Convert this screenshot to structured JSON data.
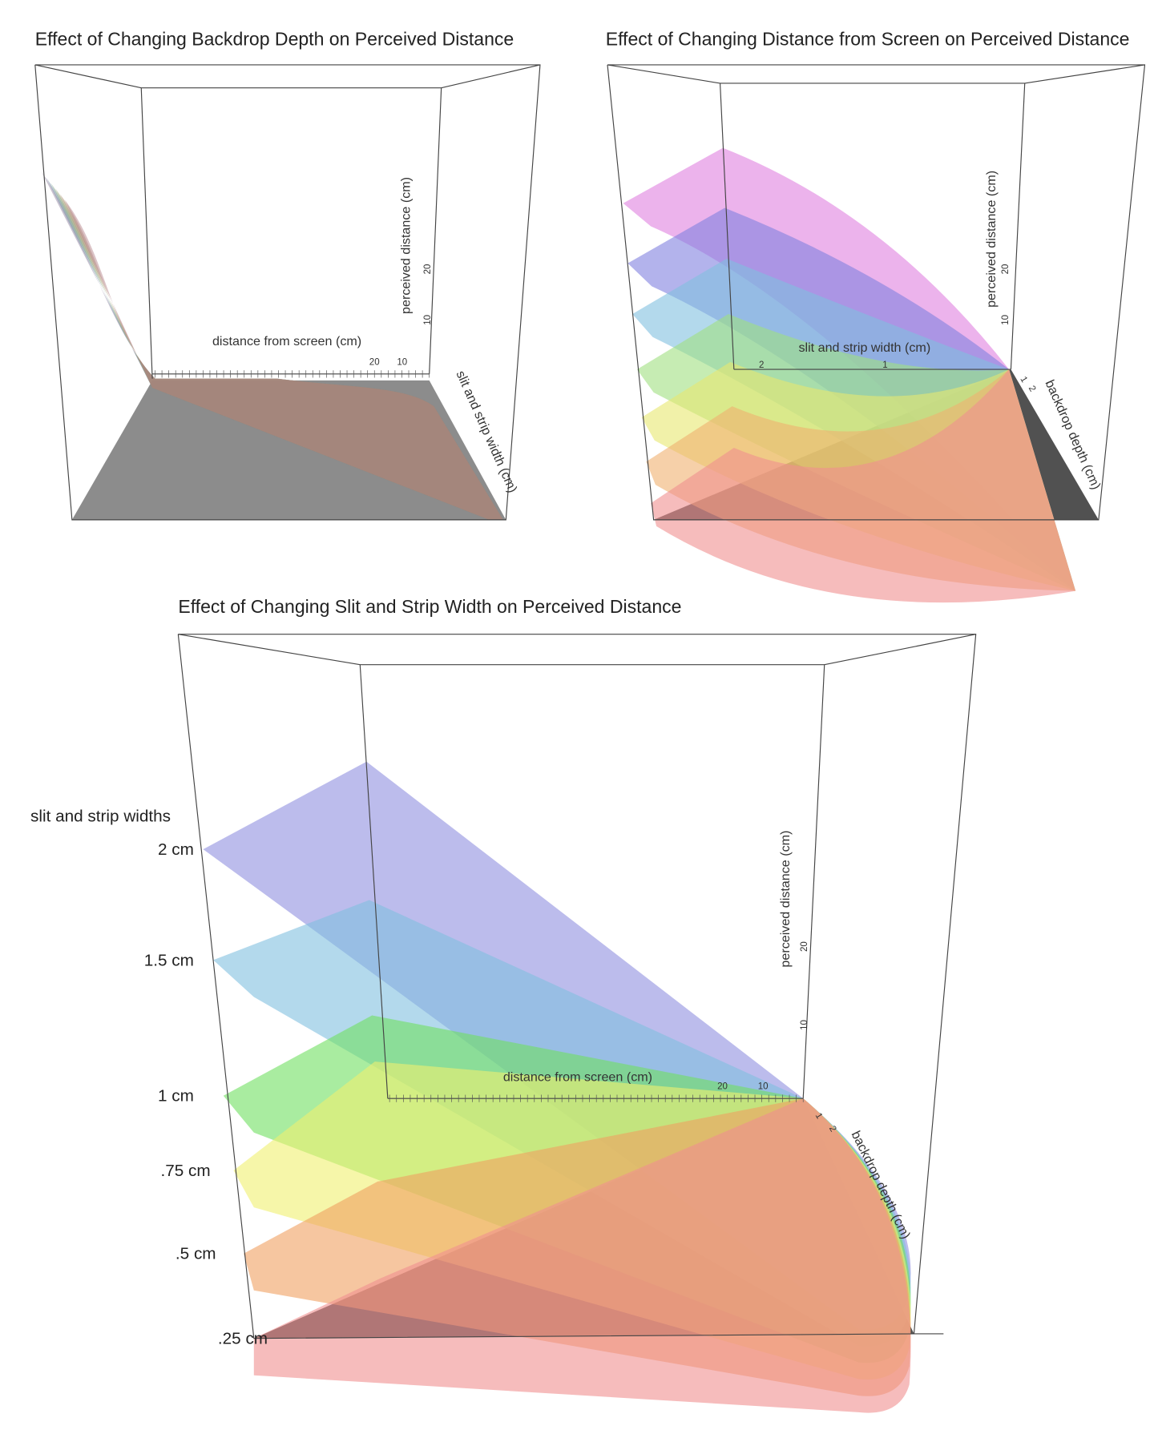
{
  "panels": [
    {
      "title": "Effect of Changing Backdrop Depth on Perceived Distance",
      "axes": {
        "z": "perceived distance (cm)",
        "x": "distance from screen (cm)",
        "y": "slit and strip width (cm)"
      },
      "ticks": {
        "z": [
          "10",
          "20"
        ],
        "x": [
          "20",
          "10"
        ]
      }
    },
    {
      "title": "Effect of Changing Distance from Screen on Perceived Distance",
      "axes": {
        "z": "perceived distance (cm)",
        "x": "slit and strip width (cm)",
        "y": "backdrop depth (cm)"
      },
      "ticks": {
        "z": [
          "10",
          "20"
        ],
        "x": [
          "2",
          "1"
        ],
        "y": [
          "1",
          "2"
        ]
      }
    },
    {
      "title": "Effect of Changing Slit and Strip Width on Perceived Distance",
      "axes": {
        "z": "perceived distance (cm)",
        "x": "distance from screen (cm)",
        "y": "backdrop depth (cm)"
      },
      "ticks": {
        "z": [
          "10",
          "20"
        ],
        "x": [
          "20",
          "10"
        ],
        "y": [
          "1",
          "2"
        ]
      },
      "legend": {
        "title": "slit and strip widths",
        "items": [
          "2 cm",
          "1.5 cm",
          "1 cm",
          ".75 cm",
          ".5 cm",
          ".25 cm"
        ]
      }
    }
  ]
}
